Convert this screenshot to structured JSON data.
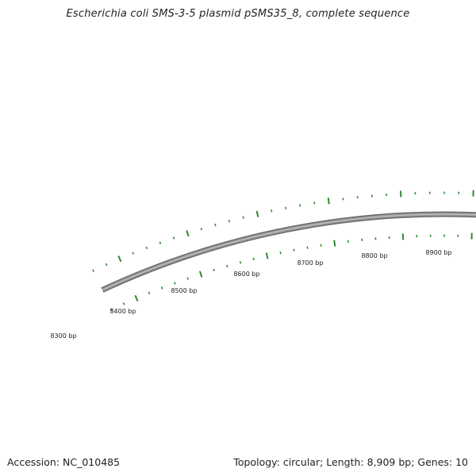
{
  "title": "Escherichia coli SMS-3-5 plasmid pSMS35_8, complete sequence",
  "footer": {
    "accession": "Accession: NC_010485",
    "summary": "Topology: circular; Length: 8,909 bp; Genes: 10"
  },
  "map": {
    "backbone_color": "#808080",
    "tick_color": "#2e8b2e",
    "label_color": "#222222",
    "ticks": [
      {
        "label": "8300 bp"
      },
      {
        "label": "8400 bp"
      },
      {
        "label": "8500 bp"
      },
      {
        "label": "8600 bp"
      },
      {
        "label": "8700 bp"
      },
      {
        "label": "8800 bp"
      },
      {
        "label": "8900 bp"
      }
    ]
  }
}
